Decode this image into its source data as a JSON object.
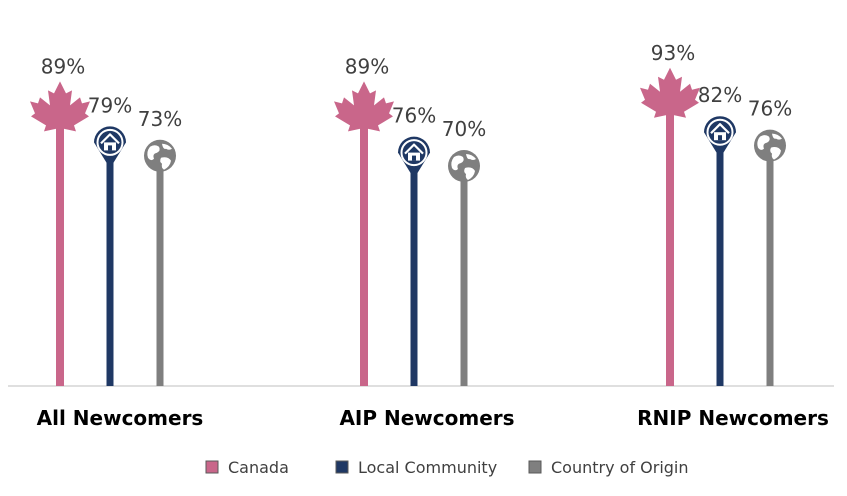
{
  "chart_data": {
    "type": "bar",
    "title": "",
    "xlabel": "",
    "ylabel": "",
    "ylim": [
      0,
      100
    ],
    "grid": false,
    "legend_position": "bottom",
    "categories": [
      "All Newcomers",
      "AIP Newcomers",
      "RNIP Newcomers"
    ],
    "series": [
      {
        "name": "Canada",
        "color": "#C9668A",
        "icon": "maple-leaf-icon",
        "values": [
          89,
          89,
          93
        ],
        "labels": [
          "89%",
          "89%",
          "93%"
        ]
      },
      {
        "name": "Local Community",
        "color": "#1F3864",
        "icon": "home-pin-icon",
        "values": [
          79,
          76,
          82
        ],
        "labels": [
          "79%",
          "76%",
          "82%"
        ]
      },
      {
        "name": "Country of Origin",
        "color": "#7F7F7F",
        "icon": "globe-icon",
        "values": [
          73,
          70,
          76
        ],
        "labels": [
          "73%",
          "70%",
          "76%"
        ]
      }
    ]
  }
}
